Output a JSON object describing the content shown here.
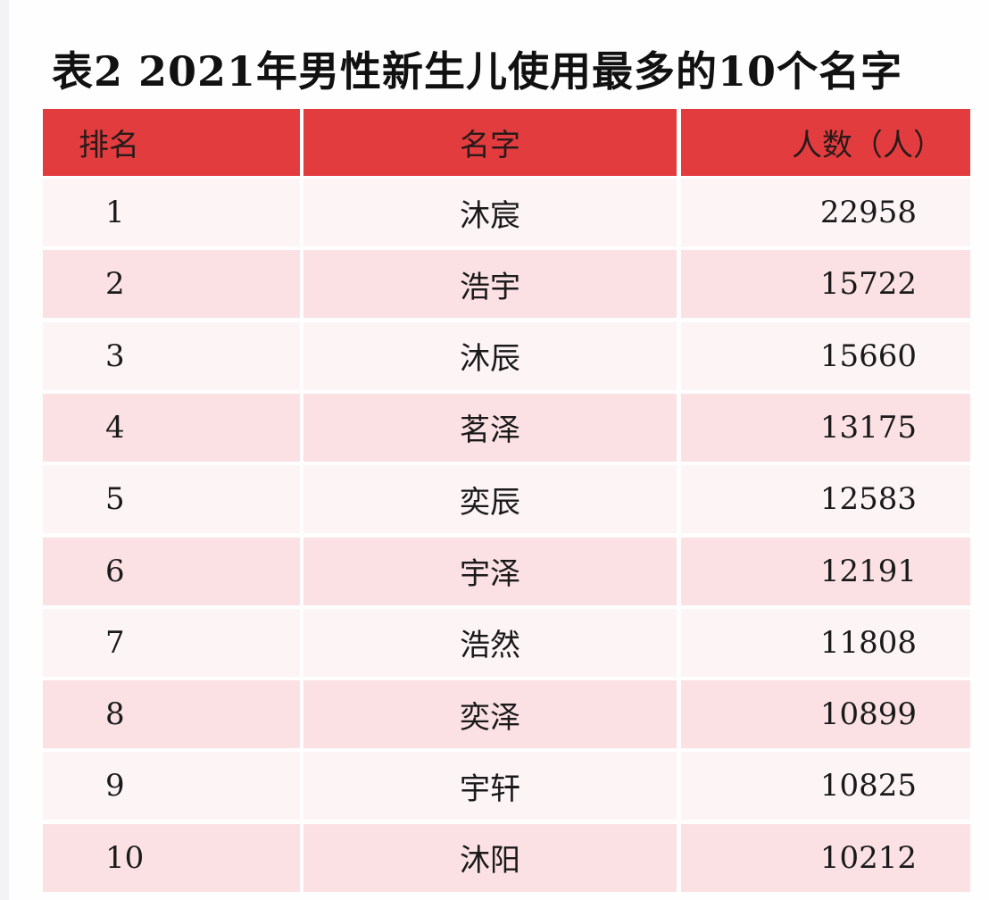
{
  "title": "表2  2021年男性新生儿使用最多的10个名字",
  "table": {
    "header": [
      "排名",
      "名字",
      "人数（人）"
    ],
    "rows": [
      [
        1,
        "沐宸",
        22958
      ],
      [
        2,
        "浩宇",
        15722
      ],
      [
        3,
        "沐辰",
        15660
      ],
      [
        4,
        "茗泽",
        13175
      ],
      [
        5,
        "奕辰",
        12583
      ],
      [
        6,
        "宇泽",
        12191
      ],
      [
        7,
        "浩然",
        11808
      ],
      [
        8,
        "奕泽",
        10899
      ],
      [
        9,
        "宇轩",
        10825
      ],
      [
        10,
        "沐阳",
        10212
      ]
    ]
  }
}
